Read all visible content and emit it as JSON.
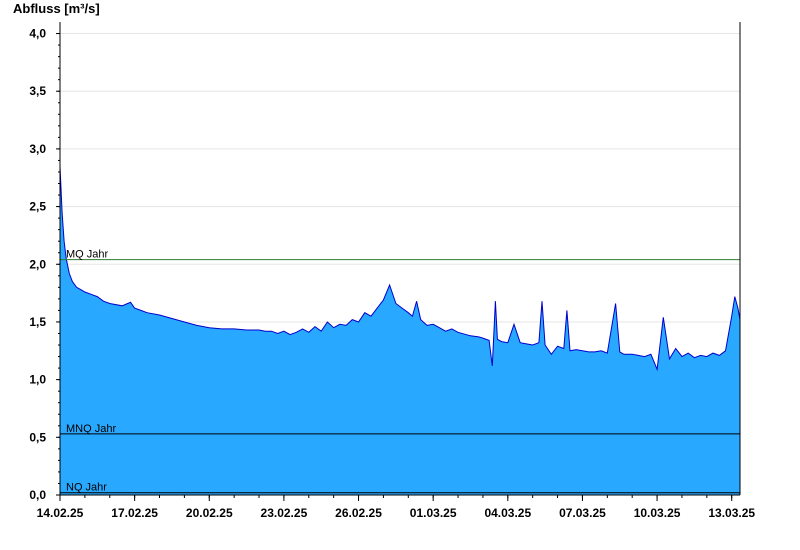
{
  "chart_data": {
    "type": "area",
    "title": "",
    "ylabel": "Abfluss [m³/s]",
    "xlabel": "",
    "ylim": [
      0,
      4.1
    ],
    "yticks": [
      {
        "value": 0.0,
        "label": "0,0"
      },
      {
        "value": 0.5,
        "label": "0,5"
      },
      {
        "value": 1.0,
        "label": "1,0"
      },
      {
        "value": 1.5,
        "label": "1,5"
      },
      {
        "value": 2.0,
        "label": "2,0"
      },
      {
        "value": 2.5,
        "label": "2,5"
      },
      {
        "value": 3.0,
        "label": "3,0"
      },
      {
        "value": 3.5,
        "label": "3,5"
      },
      {
        "value": 4.0,
        "label": "4,0"
      }
    ],
    "xlim": [
      "2025-02-14",
      "2025-03-13T08:00"
    ],
    "xticks": [
      {
        "value": "2025-02-14",
        "label": "14.02.25"
      },
      {
        "value": "2025-02-17",
        "label": "17.02.25"
      },
      {
        "value": "2025-02-20",
        "label": "20.02.25"
      },
      {
        "value": "2025-02-23",
        "label": "23.02.25"
      },
      {
        "value": "2025-02-26",
        "label": "26.02.25"
      },
      {
        "value": "2025-03-01",
        "label": "01.03.25"
      },
      {
        "value": "2025-03-04",
        "label": "04.03.25"
      },
      {
        "value": "2025-03-07",
        "label": "07.03.25"
      },
      {
        "value": "2025-03-10",
        "label": "10.03.25"
      },
      {
        "value": "2025-03-13",
        "label": "13.03.25"
      }
    ],
    "reference_lines": [
      {
        "name": "MQ Jahr",
        "value": 2.04,
        "color": "#2e7d32"
      },
      {
        "name": "MNQ Jahr",
        "value": 0.53,
        "color": "#000000"
      },
      {
        "name": "NQ Jahr",
        "value": 0.02,
        "color": "#000000"
      }
    ],
    "fill_color": "#29a8ff",
    "line_color": "#0000cc",
    "grid": true,
    "series": [
      {
        "x": [
          "2025-02-14T00:00",
          "2025-02-14T02:00",
          "2025-02-14T04:00",
          "2025-02-14T06:00",
          "2025-02-14T09:00",
          "2025-02-14T12:00",
          "2025-02-14T16:00",
          "2025-02-14T20:00",
          "2025-02-15T00:00",
          "2025-02-15T06:00",
          "2025-02-15T12:00",
          "2025-02-15T18:00",
          "2025-02-16T00:00",
          "2025-02-16T12:00",
          "2025-02-16T20:00",
          "2025-02-17T00:00",
          "2025-02-17T06:00",
          "2025-02-17T12:00",
          "2025-02-18T00:00",
          "2025-02-18T12:00",
          "2025-02-19T00:00",
          "2025-02-19T12:00",
          "2025-02-20T00:00",
          "2025-02-20T12:00",
          "2025-02-21T00:00",
          "2025-02-21T12:00",
          "2025-02-22T00:00",
          "2025-02-22T06:00",
          "2025-02-22T12:00",
          "2025-02-22T18:00",
          "2025-02-23T00:00",
          "2025-02-23T06:00",
          "2025-02-23T12:00",
          "2025-02-23T18:00",
          "2025-02-24T00:00",
          "2025-02-24T06:00",
          "2025-02-24T12:00",
          "2025-02-24T18:00",
          "2025-02-25T00:00",
          "2025-02-25T06:00",
          "2025-02-25T12:00",
          "2025-02-25T18:00",
          "2025-02-26T00:00",
          "2025-02-26T06:00",
          "2025-02-26T12:00",
          "2025-02-26T18:00",
          "2025-02-27T00:00",
          "2025-02-27T06:00",
          "2025-02-27T12:00",
          "2025-02-27T18:00",
          "2025-02-28T00:00",
          "2025-02-28T04:00",
          "2025-02-28T08:00",
          "2025-02-28T12:00",
          "2025-02-28T18:00",
          "2025-03-01T00:00",
          "2025-03-01T06:00",
          "2025-03-01T12:00",
          "2025-03-01T18:00",
          "2025-03-02T00:00",
          "2025-03-02T12:00",
          "2025-03-02T20:00",
          "2025-03-03T00:00",
          "2025-03-03T06:00",
          "2025-03-03T09:00",
          "2025-03-03T12:00",
          "2025-03-03T14:00",
          "2025-03-03T18:00",
          "2025-03-04T00:00",
          "2025-03-04T06:00",
          "2025-03-04T12:00",
          "2025-03-04T18:00",
          "2025-03-05T00:00",
          "2025-03-05T06:00",
          "2025-03-05T09:00",
          "2025-03-05T12:00",
          "2025-03-05T18:00",
          "2025-03-06T00:00",
          "2025-03-06T06:00",
          "2025-03-06T09:00",
          "2025-03-06T12:00",
          "2025-03-06T18:00",
          "2025-03-07T00:00",
          "2025-03-07T06:00",
          "2025-03-07T12:00",
          "2025-03-07T18:00",
          "2025-03-08T00:00",
          "2025-03-08T08:00",
          "2025-03-08T12:00",
          "2025-03-08T16:00",
          "2025-03-09T00:00",
          "2025-03-09T06:00",
          "2025-03-09T12:00",
          "2025-03-09T18:00",
          "2025-03-10T00:00",
          "2025-03-10T06:00",
          "2025-03-10T12:00",
          "2025-03-10T18:00",
          "2025-03-11T00:00",
          "2025-03-11T06:00",
          "2025-03-11T12:00",
          "2025-03-11T18:00",
          "2025-03-12T00:00",
          "2025-03-12T06:00",
          "2025-03-12T12:00",
          "2025-03-12T18:00",
          "2025-03-13T00:00",
          "2025-03-13T03:00",
          "2025-03-13T06:00",
          "2025-03-13T08:00"
        ],
        "y": [
          2.85,
          2.45,
          2.2,
          2.05,
          1.92,
          1.85,
          1.8,
          1.78,
          1.76,
          1.74,
          1.72,
          1.68,
          1.66,
          1.64,
          1.67,
          1.62,
          1.6,
          1.58,
          1.56,
          1.53,
          1.5,
          1.47,
          1.45,
          1.44,
          1.44,
          1.43,
          1.43,
          1.42,
          1.42,
          1.4,
          1.42,
          1.39,
          1.41,
          1.44,
          1.41,
          1.46,
          1.42,
          1.5,
          1.45,
          1.48,
          1.47,
          1.52,
          1.5,
          1.58,
          1.55,
          1.62,
          1.69,
          1.82,
          1.66,
          1.62,
          1.58,
          1.55,
          1.68,
          1.52,
          1.47,
          1.48,
          1.45,
          1.42,
          1.44,
          1.41,
          1.38,
          1.37,
          1.36,
          1.34,
          1.12,
          1.68,
          1.35,
          1.33,
          1.32,
          1.48,
          1.32,
          1.31,
          1.3,
          1.32,
          1.68,
          1.3,
          1.22,
          1.29,
          1.27,
          1.6,
          1.25,
          1.26,
          1.25,
          1.24,
          1.24,
          1.25,
          1.23,
          1.66,
          1.24,
          1.22,
          1.22,
          1.21,
          1.2,
          1.22,
          1.09,
          1.54,
          1.18,
          1.27,
          1.2,
          1.23,
          1.19,
          1.21,
          1.2,
          1.23,
          1.21,
          1.25,
          1.55,
          1.72,
          1.62,
          1.52
        ]
      }
    ]
  }
}
